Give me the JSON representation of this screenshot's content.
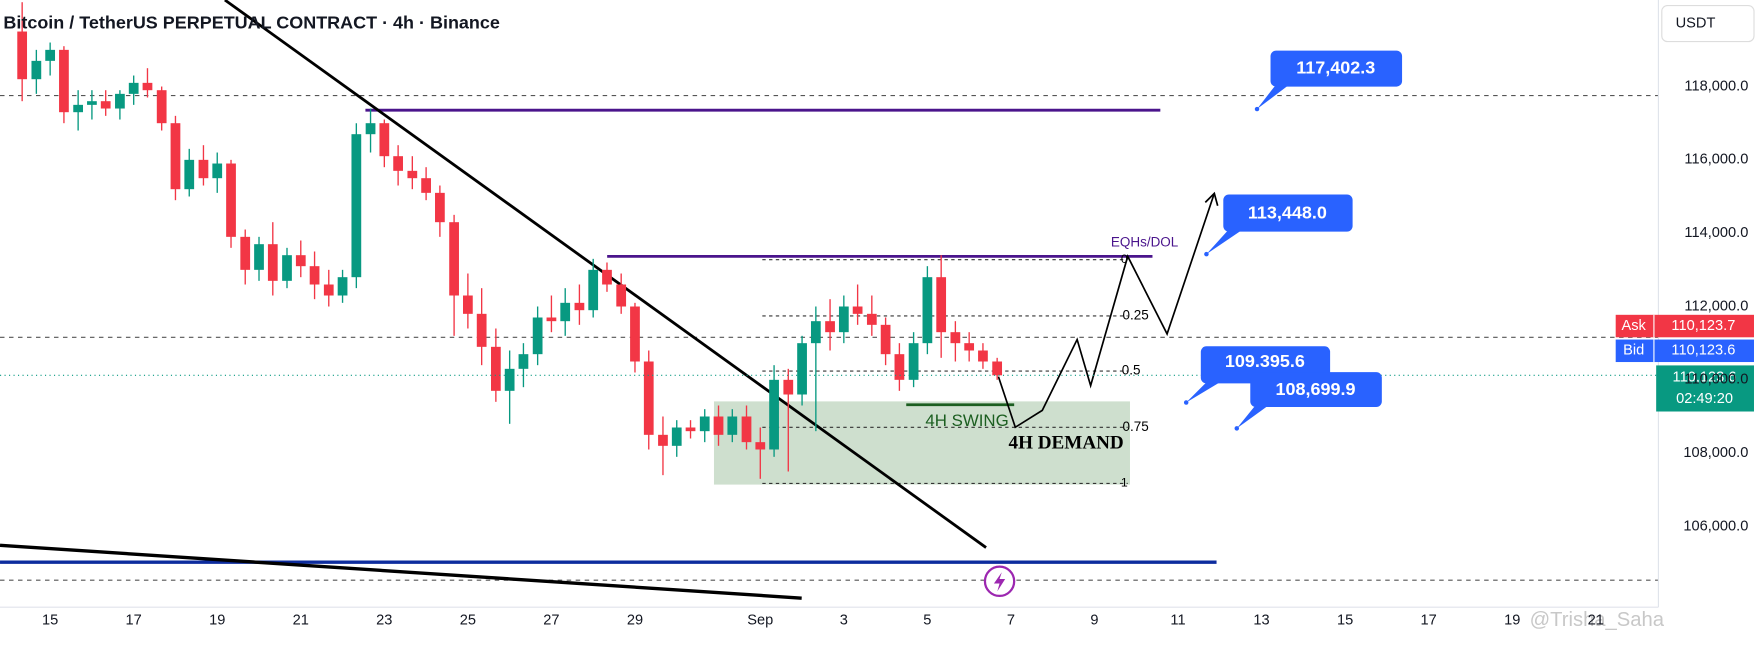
{
  "chart_data": {
    "type": "candlestick",
    "title": "Bitcoin / TetherUS PERPETUAL CONTRACT · 4h · Binance",
    "currency": "USDT",
    "x": [
      -0.67,
      -0.33,
      0,
      0.33,
      0.67,
      1,
      1.33,
      1.67,
      2,
      2.33,
      2.67,
      3,
      3.33,
      3.67,
      4,
      4.33,
      4.67,
      5,
      5.33,
      5.67,
      6,
      6.33,
      6.67,
      7,
      7.33,
      7.67,
      8,
      8.33,
      8.67,
      9,
      9.33,
      9.67,
      10,
      10.33,
      10.67,
      11,
      11.33,
      11.67,
      12,
      12.33,
      12.67,
      13,
      13.33,
      13.67,
      14,
      14.33,
      14.67,
      15,
      15.33,
      15.67,
      16,
      16.33,
      16.67,
      17,
      17.33,
      17.67,
      18,
      18.33,
      18.67,
      19,
      19.33,
      19.67,
      20,
      20.33,
      20.67,
      21,
      21.33,
      21.67,
      22,
      22.33,
      22.67
    ],
    "open": [
      119500,
      118200,
      118700,
      119000,
      117300,
      117500,
      117600,
      117400,
      117800,
      118100,
      117900,
      117000,
      115200,
      116000,
      115500,
      115900,
      113900,
      113000,
      113700,
      112700,
      113400,
      113100,
      112600,
      112300,
      112800,
      116700,
      117000,
      116100,
      115700,
      115500,
      115100,
      114300,
      112300,
      111800,
      110900,
      109700,
      110300,
      110700,
      111700,
      111600,
      112100,
      111900,
      113000,
      112600,
      112000,
      110500,
      108500,
      108200,
      108700,
      108600,
      109000,
      108500,
      109000,
      108300,
      108100,
      110000,
      109600,
      111000,
      111600,
      111300,
      112000,
      111800,
      111500,
      110700,
      110000,
      111000,
      112800,
      111300,
      111000,
      110800,
      110500
    ],
    "high": [
      120300,
      119000,
      119200,
      119100,
      117900,
      117900,
      117900,
      117900,
      118300,
      118500,
      118000,
      117200,
      116300,
      116400,
      116200,
      116000,
      114100,
      113900,
      114300,
      113600,
      113800,
      113500,
      113000,
      113000,
      117000,
      117400,
      117100,
      116400,
      116100,
      115800,
      115300,
      114500,
      112900,
      112500,
      111400,
      110800,
      111000,
      112000,
      112300,
      112500,
      112600,
      113300,
      113200,
      112900,
      112100,
      110800,
      109000,
      108900,
      108900,
      109200,
      109300,
      109200,
      109300,
      108700,
      110400,
      110300,
      111200,
      112000,
      112200,
      112300,
      112600,
      112300,
      111700,
      111000,
      111300,
      113100,
      113400,
      111600,
      111300,
      111000,
      110600
    ],
    "low": [
      117600,
      117800,
      118300,
      117000,
      116800,
      117100,
      117200,
      117100,
      117500,
      117700,
      116800,
      114900,
      115000,
      115300,
      115100,
      113600,
      112600,
      112700,
      112300,
      112500,
      112800,
      112200,
      112000,
      112100,
      112500,
      116200,
      115800,
      115300,
      115200,
      114900,
      113900,
      111200,
      111400,
      110400,
      109400,
      108800,
      109800,
      110400,
      111300,
      111200,
      111500,
      111700,
      112400,
      111800,
      110200,
      108100,
      107400,
      107900,
      108400,
      108300,
      108200,
      108300,
      108100,
      107300,
      107900,
      107500,
      109300,
      108600,
      110800,
      111000,
      111500,
      111200,
      110400,
      109700,
      109800,
      110700,
      110600,
      110500,
      110500,
      110300,
      110000
    ],
    "close": [
      118200,
      118700,
      119000,
      117300,
      117500,
      117600,
      117400,
      117800,
      118100,
      117900,
      117000,
      115200,
      116000,
      115500,
      115900,
      113900,
      113000,
      113700,
      112700,
      113400,
      113100,
      112600,
      112300,
      112800,
      116700,
      117000,
      116100,
      115700,
      115500,
      115100,
      114300,
      112300,
      111800,
      110900,
      109700,
      110300,
      110700,
      111700,
      111600,
      112100,
      111900,
      113000,
      112600,
      112000,
      110500,
      108500,
      108200,
      108700,
      108600,
      109000,
      108500,
      109000,
      108300,
      108100,
      110000,
      109600,
      111000,
      111600,
      111300,
      112000,
      111800,
      111500,
      110700,
      110000,
      111000,
      112800,
      111300,
      111000,
      110800,
      110500,
      110123.6
    ],
    "up_color": "#089981",
    "down_color": "#f23645",
    "ylim": [
      103800,
      120360
    ],
    "yticks": [
      {
        "value": 106000,
        "label": "106,000.0"
      },
      {
        "value": 108000,
        "label": "108,000.0"
      },
      {
        "value": 110000,
        "label": "110,000.0"
      },
      {
        "value": 112000,
        "label": "112,000.0"
      },
      {
        "value": 114000,
        "label": "114,000.0"
      },
      {
        "value": 116000,
        "label": "116,000.0"
      },
      {
        "value": 118000,
        "label": "118,000.0"
      }
    ],
    "xlim": [
      -1.2,
      38.5
    ],
    "xticks": [
      {
        "value": 0,
        "label": "15"
      },
      {
        "value": 2,
        "label": "17"
      },
      {
        "value": 4,
        "label": "19"
      },
      {
        "value": 6,
        "label": "21"
      },
      {
        "value": 8,
        "label": "23"
      },
      {
        "value": 10,
        "label": "25"
      },
      {
        "value": 12,
        "label": "27"
      },
      {
        "value": 14,
        "label": "29"
      },
      {
        "value": 17,
        "label": "Sep"
      },
      {
        "value": 19,
        "label": "3"
      },
      {
        "value": 21,
        "label": "5"
      },
      {
        "value": 23,
        "label": "7"
      },
      {
        "value": 25,
        "label": "9"
      },
      {
        "value": 27,
        "label": "11"
      },
      {
        "value": 29,
        "label": "13"
      },
      {
        "value": 31,
        "label": "15"
      },
      {
        "value": 33,
        "label": "17"
      },
      {
        "value": 35,
        "label": "19"
      },
      {
        "value": 37,
        "label": "21"
      }
    ],
    "grid": false,
    "annotations": {
      "eqh": "EQHs/DOL",
      "fib": [
        "0",
        "0.25",
        "0.5",
        "0.75",
        "1"
      ],
      "swing": "4H SWING",
      "demand": "4H DEMAND",
      "callouts": [
        "117,402.3",
        "113,448.0",
        "109.395.6",
        "108,699.9"
      ]
    },
    "price_scale": {
      "ask_label": "Ask",
      "ask": "110,123.7",
      "bid_label": "Bid",
      "bid": "110,123.6",
      "last": "110,123.6",
      "countdown": "02:49:20"
    },
    "watermark": "@Trisha_Saha"
  }
}
